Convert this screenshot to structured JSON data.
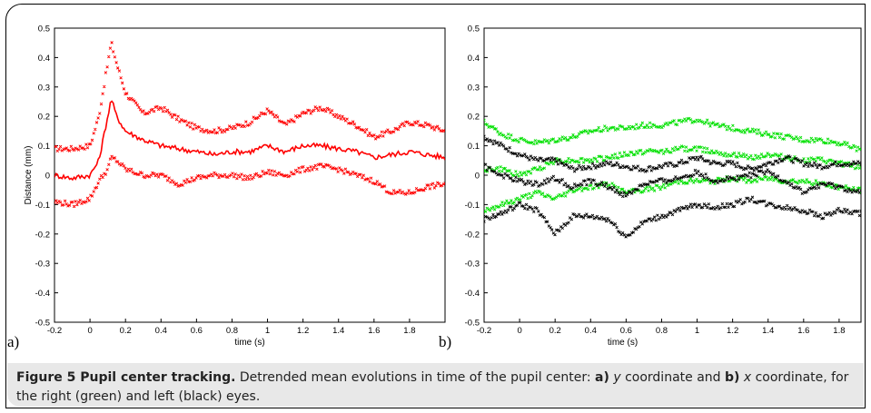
{
  "colors": {
    "red": "#ff0000",
    "green": "#00e000",
    "black": "#000000",
    "caption_bg": "#e8e8e8"
  },
  "caption": {
    "figure_label": "Figure 5 Pupil center tracking.",
    "text_1": " Detrended mean evolutions in time of the pupil center: ",
    "a_label": "a)",
    "a_var": "y",
    "text_2": " coordinate and ",
    "b_label": "b)",
    "b_var": "x",
    "text_3": " coordinate, for the right (green) and left (black) eyes."
  },
  "chart_data": [
    {
      "type": "line",
      "panel_label": "a)",
      "xlabel": "time (s)",
      "ylabel": "Distance (mm)",
      "xlim": [
        -0.2,
        2.0
      ],
      "ylim": [
        -0.5,
        0.5
      ],
      "xticks": [
        "-0.2",
        "0",
        "0.2",
        "0.4",
        "0.6",
        "0.8",
        "1",
        "1.2",
        "1.4",
        "1.6",
        "1.8"
      ],
      "yticks": [
        "0.5",
        "0.4",
        "0.3",
        "0.2",
        "0.1",
        "0",
        "-0.1",
        "-0.2",
        "-0.3",
        "-0.4",
        "-0.5"
      ],
      "x": [
        -0.2,
        -0.1,
        0,
        0.05,
        0.1,
        0.12,
        0.15,
        0.2,
        0.3,
        0.4,
        0.5,
        0.6,
        0.7,
        0.8,
        0.9,
        1.0,
        1.1,
        1.2,
        1.3,
        1.4,
        1.5,
        1.6,
        1.7,
        1.8,
        1.9,
        2.0
      ],
      "series": [
        {
          "color": "red",
          "style": "markers",
          "values": [
            0.09,
            0.09,
            0.1,
            0.2,
            0.38,
            0.45,
            0.38,
            0.28,
            0.21,
            0.23,
            0.19,
            0.16,
            0.15,
            0.16,
            0.18,
            0.22,
            0.17,
            0.21,
            0.23,
            0.2,
            0.17,
            0.13,
            0.15,
            0.18,
            0.17,
            0.15
          ]
        },
        {
          "color": "red",
          "style": "line",
          "values": [
            0.0,
            -0.01,
            0.0,
            0.05,
            0.2,
            0.26,
            0.2,
            0.15,
            0.12,
            0.1,
            0.09,
            0.08,
            0.07,
            0.08,
            0.08,
            0.1,
            0.08,
            0.1,
            0.1,
            0.09,
            0.08,
            0.06,
            0.07,
            0.08,
            0.07,
            0.06
          ]
        },
        {
          "color": "red",
          "style": "markers",
          "values": [
            -0.09,
            -0.1,
            -0.08,
            -0.02,
            0.02,
            0.06,
            0.05,
            0.02,
            0.0,
            0.0,
            -0.03,
            -0.01,
            0.0,
            0.0,
            -0.01,
            0.01,
            0.0,
            0.02,
            0.03,
            0.02,
            0.0,
            -0.02,
            -0.06,
            -0.06,
            -0.04,
            -0.03
          ]
        }
      ]
    },
    {
      "type": "line",
      "panel_label": "b)",
      "xlabel": "time (s)",
      "ylabel": "",
      "xlim": [
        -0.2,
        2.0
      ],
      "ylim": [
        -0.5,
        0.5
      ],
      "xticks": [
        "-0.2",
        "0",
        "0.2",
        "0.4",
        "0.6",
        "0.8",
        "1",
        "1.2",
        "1.4",
        "1.6",
        "1.8"
      ],
      "yticks": [
        "0.5",
        "0.4",
        "0.3",
        "0.2",
        "0.1",
        "0",
        "-0.1",
        "-0.2",
        "-0.3",
        "-0.4",
        "-0.5"
      ],
      "x": [
        -0.2,
        -0.1,
        0,
        0.1,
        0.2,
        0.3,
        0.4,
        0.5,
        0.6,
        0.7,
        0.8,
        0.9,
        1.0,
        1.1,
        1.2,
        1.3,
        1.4,
        1.5,
        1.6,
        1.7,
        1.8,
        1.9,
        2.0
      ],
      "series": [
        {
          "color": "green",
          "style": "markers",
          "values": [
            0.18,
            0.14,
            0.12,
            0.11,
            0.12,
            0.13,
            0.15,
            0.16,
            0.16,
            0.17,
            0.17,
            0.18,
            0.19,
            0.17,
            0.16,
            0.15,
            0.14,
            0.13,
            0.12,
            0.12,
            0.11,
            0.09,
            0.08
          ]
        },
        {
          "color": "green",
          "style": "markers",
          "values": [
            0.02,
            0.02,
            0.0,
            0.02,
            0.05,
            0.05,
            0.05,
            0.06,
            0.07,
            0.08,
            0.08,
            0.09,
            0.09,
            0.08,
            0.07,
            0.06,
            0.07,
            0.06,
            0.05,
            0.05,
            0.04,
            0.03,
            0.02
          ]
        },
        {
          "color": "green",
          "style": "markers",
          "values": [
            -0.12,
            -0.1,
            -0.08,
            -0.06,
            -0.08,
            -0.05,
            -0.04,
            -0.03,
            -0.06,
            -0.05,
            -0.04,
            -0.02,
            -0.02,
            -0.02,
            -0.01,
            -0.02,
            -0.01,
            -0.02,
            -0.02,
            -0.03,
            -0.04,
            -0.05,
            -0.06
          ]
        },
        {
          "color": "black",
          "style": "markers",
          "values": [
            0.13,
            0.1,
            0.07,
            0.05,
            0.05,
            0.02,
            0.03,
            0.04,
            0.03,
            0.02,
            0.03,
            0.04,
            0.06,
            0.04,
            0.04,
            0.02,
            0.04,
            0.06,
            0.04,
            0.03,
            0.04,
            0.04,
            0.03
          ]
        },
        {
          "color": "black",
          "style": "markers",
          "values": [
            0.03,
            0.0,
            -0.02,
            -0.03,
            -0.01,
            -0.04,
            -0.02,
            -0.04,
            -0.07,
            -0.03,
            -0.02,
            -0.01,
            0.01,
            -0.02,
            -0.01,
            0.0,
            0.01,
            -0.02,
            -0.06,
            -0.03,
            -0.04,
            -0.06,
            -0.04
          ]
        },
        {
          "color": "black",
          "style": "markers",
          "values": [
            -0.15,
            -0.13,
            -0.1,
            -0.12,
            -0.2,
            -0.14,
            -0.14,
            -0.15,
            -0.21,
            -0.16,
            -0.14,
            -0.12,
            -0.1,
            -0.11,
            -0.1,
            -0.08,
            -0.1,
            -0.11,
            -0.12,
            -0.14,
            -0.12,
            -0.13,
            -0.13
          ]
        }
      ]
    }
  ]
}
